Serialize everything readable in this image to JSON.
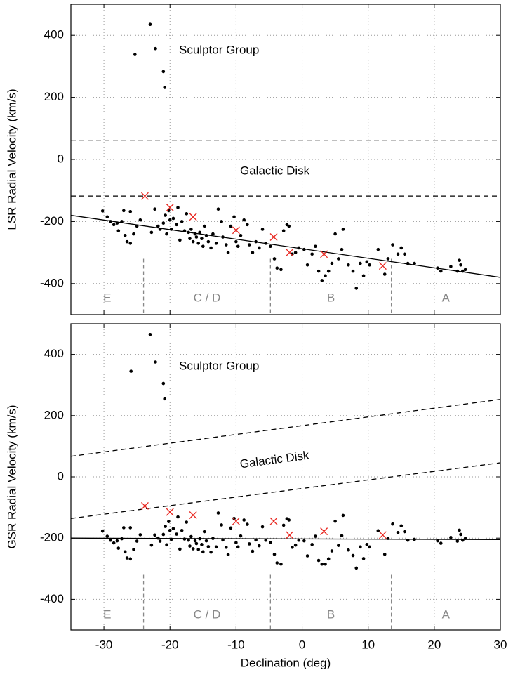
{
  "chart_data": [
    {
      "type": "scatter",
      "y_label": "LSR Radial Velocity (km/s)",
      "xlim": [
        -35,
        30
      ],
      "xticks": [
        -30,
        -20,
        -10,
        0,
        10,
        20,
        30
      ],
      "ylim": [
        -500,
        500
      ],
      "yticks": [
        -400,
        -200,
        0,
        200,
        400
      ],
      "grid": true,
      "annotations": [
        "Sculptor Group",
        "Galactic  Disk"
      ],
      "regions": [
        "E",
        "C / D",
        "B",
        "A"
      ],
      "dividers": [
        -24,
        -4.8,
        13.5
      ],
      "divider_top": -320,
      "divider_color": "#888888",
      "lines": [
        {
          "x": [
            -35,
            30
          ],
          "values": [
            -180,
            -380
          ],
          "color": "#000000",
          "dashed": false
        },
        {
          "x": [
            -35,
            30
          ],
          "values": [
            62,
            62
          ],
          "color": "#000000",
          "dashed": true
        },
        {
          "x": [
            -35,
            30
          ],
          "values": [
            -118,
            -118
          ],
          "color": "#000000",
          "dashed": true
        }
      ],
      "series": [
        {
          "marker": "dot",
          "color": "#000000",
          "x": [
            -25.3,
            -23,
            -22.2,
            -21,
            -20.8,
            -30.2,
            -29.5,
            -29,
            -28.5,
            -28,
            -27.8,
            -27.3,
            -27,
            -26.8,
            -26.5,
            -26,
            -26,
            -25.5,
            -25,
            -24.5,
            -22.8,
            -22.3,
            -21.8,
            -21.5,
            -21,
            -20.7,
            -20.5,
            -20.2,
            -20,
            -19.8,
            -19.5,
            -19,
            -18.8,
            -18.5,
            -18.2,
            -17.8,
            -17.5,
            -17.2,
            -17,
            -16.8,
            -16.5,
            -16.2,
            -16,
            -15.7,
            -15.5,
            -15.2,
            -15,
            -14.8,
            -14.5,
            -14.2,
            -13.8,
            -13.5,
            -13,
            -12.7,
            -12.2,
            -12,
            -11.5,
            -11.2,
            -10.8,
            -10.3,
            -10,
            -9.7,
            -9.3,
            -8.8,
            -8.3,
            -8,
            -7.5,
            -7,
            -6.5,
            -6,
            -5.5,
            -4.8,
            -4.2,
            -3.8,
            -3.2,
            -2.8,
            -2.3,
            -2,
            -1.5,
            -1,
            -0.5,
            0.3,
            0.8,
            1.5,
            2,
            2.5,
            3,
            3.5,
            4,
            4.5,
            5,
            5.5,
            6,
            6.2,
            7,
            7.7,
            8.2,
            8.8,
            9.3,
            9.8,
            10.2,
            11.5,
            12.5,
            13,
            13.7,
            14.5,
            15,
            15.5,
            16,
            17,
            20.5,
            21,
            22.5,
            23.5,
            23.8,
            24,
            24.3,
            24.7
          ],
          "values": [
            338,
            435,
            357,
            283,
            232,
            -166,
            -185,
            -200,
            -210,
            -205,
            -230,
            -200,
            -165,
            -245,
            -265,
            -168,
            -270,
            -240,
            -215,
            -195,
            -235,
            -160,
            -215,
            -225,
            -205,
            -180,
            -240,
            -165,
            -195,
            -225,
            -190,
            -210,
            -155,
            -260,
            -200,
            -230,
            -175,
            -235,
            -255,
            -225,
            -265,
            -240,
            -250,
            -270,
            -235,
            -255,
            -280,
            -215,
            -245,
            -265,
            -285,
            -240,
            -270,
            -160,
            -200,
            -250,
            -275,
            -300,
            -215,
            -185,
            -265,
            -280,
            -245,
            -195,
            -210,
            -275,
            -300,
            -265,
            -285,
            -225,
            -270,
            -280,
            -320,
            -350,
            -355,
            -230,
            -210,
            -215,
            -305,
            -300,
            -285,
            -290,
            -340,
            -305,
            -280,
            -360,
            -390,
            -375,
            -360,
            -335,
            -240,
            -320,
            -290,
            -225,
            -340,
            -360,
            -415,
            -335,
            -375,
            -330,
            -340,
            -290,
            -370,
            -320,
            -275,
            -305,
            -285,
            -305,
            -335,
            -335,
            -350,
            -360,
            -345,
            -360,
            -325,
            -340,
            -360,
            -355
          ]
        },
        {
          "marker": "cross",
          "color": "#e8261f",
          "x": [
            -23.8,
            -20,
            -16.5,
            -10,
            -4.3,
            -1.9,
            3.3,
            12.2
          ],
          "values": [
            -118,
            -155,
            -185,
            -228,
            -250,
            -300,
            -305,
            -343
          ]
        }
      ]
    },
    {
      "type": "scatter",
      "y_label": "GSR Radial Velocity (km/s)",
      "x_label": "Declination (deg)",
      "xlim": [
        -35,
        30
      ],
      "xticks": [
        -30,
        -20,
        -10,
        0,
        10,
        20,
        30
      ],
      "ylim": [
        -500,
        500
      ],
      "yticks": [
        -400,
        -200,
        0,
        200,
        400
      ],
      "grid": true,
      "annotations": [
        "Sculptor Group",
        "Galactic  Disk"
      ],
      "regions": [
        "E",
        "C / D",
        "B",
        "A"
      ],
      "dividers": [
        -24,
        -4.8,
        13.5
      ],
      "divider_top": -320,
      "divider_color": "#888888",
      "lines": [
        {
          "x": [
            -35,
            30
          ],
          "values": [
            -200,
            -205
          ],
          "color": "#000000",
          "dashed": false
        },
        {
          "x": [
            -35,
            30
          ],
          "values": [
            67,
            253
          ],
          "color": "#000000",
          "dashed": true
        },
        {
          "x": [
            -35,
            30
          ],
          "values": [
            -136,
            46
          ],
          "color": "#000000",
          "dashed": true
        }
      ],
      "series": [
        {
          "marker": "dot",
          "color": "#000000",
          "x": [
            -25.9,
            -23,
            -22.2,
            -21,
            -20.8,
            -30.2,
            -29.5,
            -29,
            -28.5,
            -28,
            -27.8,
            -27.3,
            -27,
            -26.8,
            -26.5,
            -26,
            -26,
            -25.5,
            -25,
            -24.5,
            -22.8,
            -22.3,
            -21.8,
            -21.5,
            -21,
            -20.7,
            -20.5,
            -20.2,
            -20,
            -19.8,
            -19.5,
            -19,
            -18.8,
            -18.5,
            -18.2,
            -17.8,
            -17.5,
            -17.2,
            -17,
            -16.8,
            -16.5,
            -16.2,
            -16,
            -15.7,
            -15.5,
            -15.2,
            -15,
            -14.8,
            -14.5,
            -14.2,
            -13.8,
            -13.5,
            -13,
            -12.7,
            -12.2,
            -12,
            -11.5,
            -11.2,
            -10.8,
            -10.3,
            -10,
            -9.7,
            -9.3,
            -8.8,
            -8.3,
            -8,
            -7.5,
            -7,
            -6.5,
            -6,
            -5.5,
            -4.8,
            -4.2,
            -3.8,
            -3.2,
            -2.8,
            -2.3,
            -2,
            -1.5,
            -1,
            -0.5,
            0.3,
            0.8,
            1.5,
            2,
            2.5,
            3,
            3.5,
            4,
            4.5,
            5,
            5.5,
            6,
            6.2,
            7,
            7.7,
            8.2,
            8.8,
            9.3,
            9.8,
            10.2,
            11.5,
            12.5,
            13,
            13.7,
            14.5,
            15,
            15.5,
            16,
            17,
            20.5,
            21,
            22.5,
            23.5,
            23.8,
            24,
            24.3,
            24.7
          ],
          "values": [
            345,
            465,
            375,
            305,
            255,
            -177,
            -194,
            -207,
            -216,
            -209,
            -233,
            -202,
            -166,
            -245,
            -265,
            -166,
            -268,
            -237,
            -210,
            -189,
            -223,
            -190,
            -200,
            -210,
            -188,
            -162,
            -222,
            -146,
            -175,
            -204,
            -169,
            -187,
            -131,
            -236,
            -175,
            -203,
            -148,
            -207,
            -226,
            -195,
            -235,
            -209,
            -218,
            -237,
            -202,
            -221,
            -245,
            -179,
            -209,
            -228,
            -246,
            -201,
            -229,
            -118,
            -157,
            -206,
            -230,
            -254,
            -167,
            -136,
            -215,
            -229,
            -193,
            -141,
            -155,
            -219,
            -243,
            -206,
            -225,
            -163,
            -207,
            -214,
            -253,
            -281,
            -285,
            -158,
            -137,
            -141,
            -230,
            -223,
            -207,
            -209,
            -258,
            -221,
            -194,
            -273,
            -285,
            -285,
            -268,
            -242,
            -145,
            -224,
            -192,
            -126,
            -239,
            -257,
            -298,
            -229,
            -267,
            -221,
            -229,
            -176,
            -253,
            -201,
            -154,
            -182,
            -160,
            -179,
            -207,
            -204,
            -209,
            -217,
            -198,
            -210,
            -174,
            -188,
            -207,
            -201
          ]
        },
        {
          "marker": "cross",
          "color": "#e8261f",
          "x": [
            -23.8,
            -20,
            -16.5,
            -10,
            -4.3,
            -1.9,
            3.3,
            12.2
          ],
          "values": [
            -95,
            -115,
            -125,
            -145,
            -145,
            -190,
            -178,
            -190
          ]
        }
      ]
    }
  ]
}
